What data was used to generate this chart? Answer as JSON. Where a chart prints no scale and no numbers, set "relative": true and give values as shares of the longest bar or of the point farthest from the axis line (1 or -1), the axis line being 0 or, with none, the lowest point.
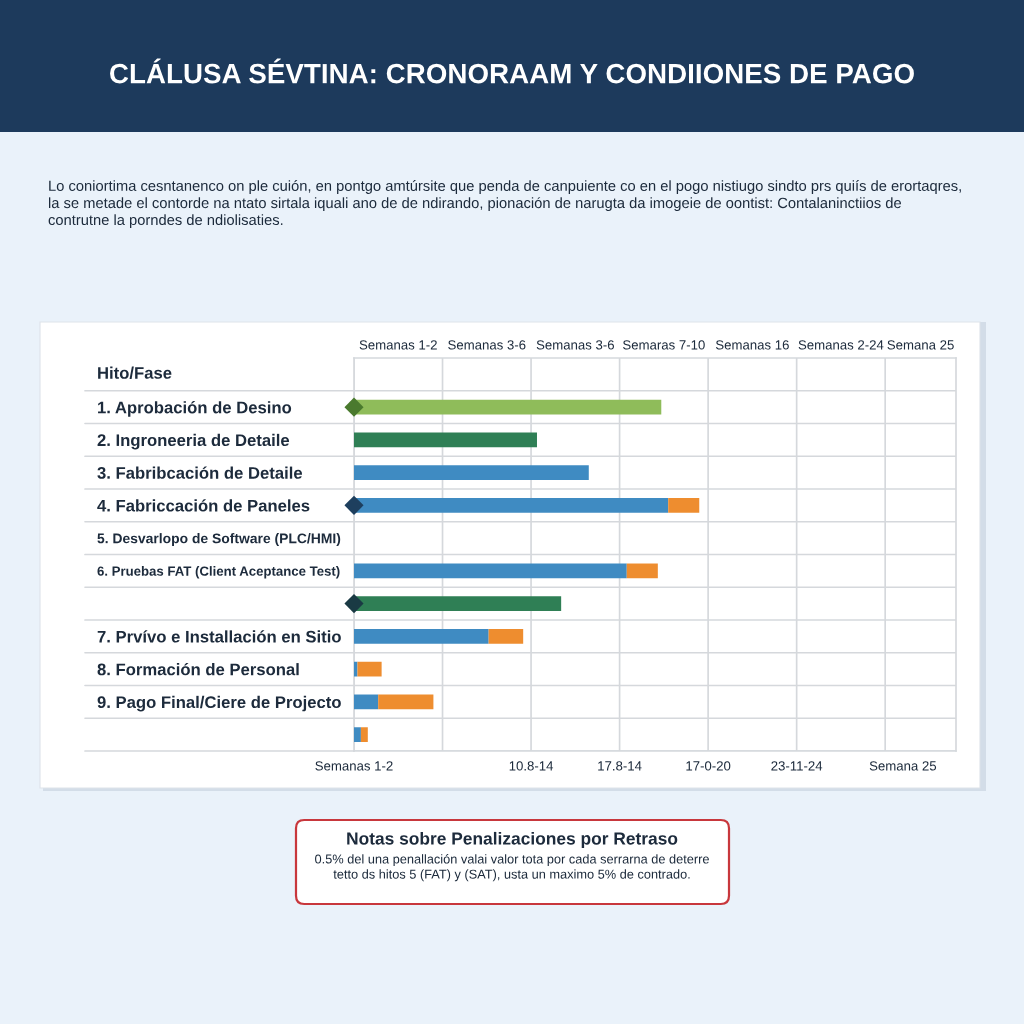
{
  "chart_data": {
    "type": "bar",
    "orientation": "horizontal",
    "stacked": true,
    "relative": true,
    "title": "CLÁLUSA SÉVTINA: CRONORAAM Y CONDIIONES DE PAGO",
    "subtitle": "Lo coniortima cesntanenco on ple cuión, en pontgo amtúrsite que penda de canpuiente co en el pogo nistiugo sindto prs quiís de erortaqres, la se metade el contorde na ntato sirtala iquali ano de de ndirando, pionación de narugta da imogeie de oontist: Contalaninctiios de contrutne la porndes de ndiolisaties.",
    "ylabel": "Hito/Fase",
    "categories": [
      "1. Aprobación de Desino",
      "2. Ingroneeria de Detaile",
      "3. Fabribcación de Detaile",
      "4. Fabriccación de Paneles",
      "5. Desvarlopo de Software (PLC/HMI)",
      "6. Pruebas FAT (Client Aceptance Test)",
      null,
      "7. Prvívo e Installación en Sitio",
      "8. Formación de Personal",
      "9. Pago Final/Ciere de Projecto",
      null
    ],
    "series": [
      {
        "colors": [
          "#8fbc5a",
          "#2f7f55",
          "#3f8bc2",
          "#3f8bc2",
          null,
          "#3f8bc2",
          "#2f7f55",
          "#3f8bc2",
          "#3f8bc2",
          "#3f8bc2",
          "#3f8bc2"
        ],
        "values": [
          0.89,
          0.53,
          0.68,
          0.91,
          null,
          0.79,
          0.6,
          0.39,
          0.01,
          0.07,
          0.02
        ]
      },
      {
        "color": "#ee8d2f",
        "values": [
          null,
          null,
          null,
          0.09,
          null,
          0.09,
          null,
          0.1,
          0.07,
          0.16,
          0.02
        ]
      },
      {
        "type": "scatter",
        "marker": "diamond",
        "colors": [
          "#4a7a2e",
          null,
          null,
          "#1e3f5e",
          null,
          null,
          "#1a3a44",
          null,
          null,
          null,
          null
        ],
        "values": [
          0,
          null,
          null,
          0,
          null,
          null,
          0,
          null,
          null,
          null,
          null
        ]
      }
    ],
    "grid": true,
    "annotations": [
      "Semanas 1-2",
      "Semanas 3-6",
      "Semanas 3-6",
      "Semaras 7-10",
      "Semanas 16",
      "Semanas 2-24",
      "Semana 25",
      "Semanas 1-2",
      "10.8-14",
      "17.8-14",
      "17-0-20",
      "23-11-24",
      "Semana 25",
      "Notas sobre Penalizaciones por Retraso",
      "0.5% del una penallación valai valor tota por cada serrarna de deterre tetto ds hitos 5 (FAT) y (SAT), usta un maximo 5% de contrado."
    ]
  }
}
